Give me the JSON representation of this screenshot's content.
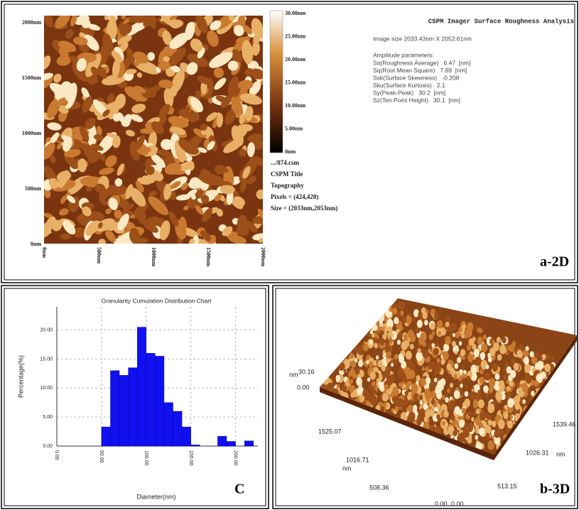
{
  "panel_a": {
    "title": "CSPM Imager Surface Roughness Analysis",
    "image_size": "Image size 2033.43nm X 2052.61nm",
    "amplitude_heading": "Amplitude parameters:",
    "parameters": [
      "Sa(Roughness Average)   6.47  [nm]",
      "Sq(Root Mean Square)   7.69  [nm]",
      "Ssk(Surface Skewness)   -0.208",
      "Sku(Surface Kurtosis)   2.1",
      "Sy(Peak-Peak)   30.2  [nm]",
      "Sz(Ten Point Height)   30.1  [nm]"
    ],
    "y_ticks": [
      "2000nm",
      "1500nm",
      "1000nm",
      "500nm",
      "0nm"
    ],
    "x_ticks": [
      "0nm",
      "500nm",
      "1000nm",
      "1500nm",
      "2000nm"
    ],
    "colorbar_ticks": [
      "30.00nm",
      "25.00nm",
      "20.00nm",
      "15.00nm",
      "10.00nm",
      "5.00nm",
      "0nm"
    ],
    "file_info": [
      ".../874.csm",
      "CSPM Title",
      "Topography",
      "Pixels = (424,420)",
      "Size = (2033nm,2053nm)"
    ],
    "label": "a-2D"
  },
  "chart_data": {
    "type": "histogram",
    "title": "Granularity Cumulation Distribution Chart",
    "x_label": "Diameter(nm)",
    "y_label": "Percentage(%)",
    "bins": [
      50,
      60,
      70,
      80,
      90,
      100,
      110,
      120,
      130,
      140,
      150,
      160,
      170,
      180,
      190,
      200,
      210,
      220
    ],
    "values": [
      3.3,
      13,
      12.2,
      13.5,
      20.5,
      16,
      15.5,
      7.5,
      6,
      3.3,
      0.2,
      0,
      0,
      1.7,
      0.8,
      0,
      0.9
    ],
    "color": "#1010f0",
    "xlim": [
      0,
      225
    ],
    "ylim": [
      0,
      24
    ],
    "xticks": [
      {
        "value": 0,
        "label": "0.00"
      },
      {
        "value": 50,
        "label": "50.00"
      },
      {
        "value": 100,
        "label": "100.00"
      },
      {
        "value": 150,
        "label": "150.00"
      },
      {
        "value": 200,
        "label": "200.00"
      }
    ],
    "yticks": [
      {
        "value": 0,
        "label": "0.00"
      },
      {
        "value": 5,
        "label": "5.00"
      },
      {
        "value": 10,
        "label": "10.00"
      },
      {
        "value": 15,
        "label": "15.00"
      },
      {
        "value": 20,
        "label": "20.00"
      }
    ],
    "grid": true
  },
  "panel_c": {
    "label": "C"
  },
  "panel_b": {
    "z_max": "30.16",
    "z_min": "0.00",
    "z_unit": "nm",
    "y_ticks": [
      "1525.07",
      "1016.71",
      "508.36",
      "0.00"
    ],
    "y_unit": "nm",
    "x_ticks": [
      "0.00",
      "513.15",
      "1026.31",
      "1539.46"
    ],
    "x_unit": "nm",
    "label": "b-3D"
  }
}
